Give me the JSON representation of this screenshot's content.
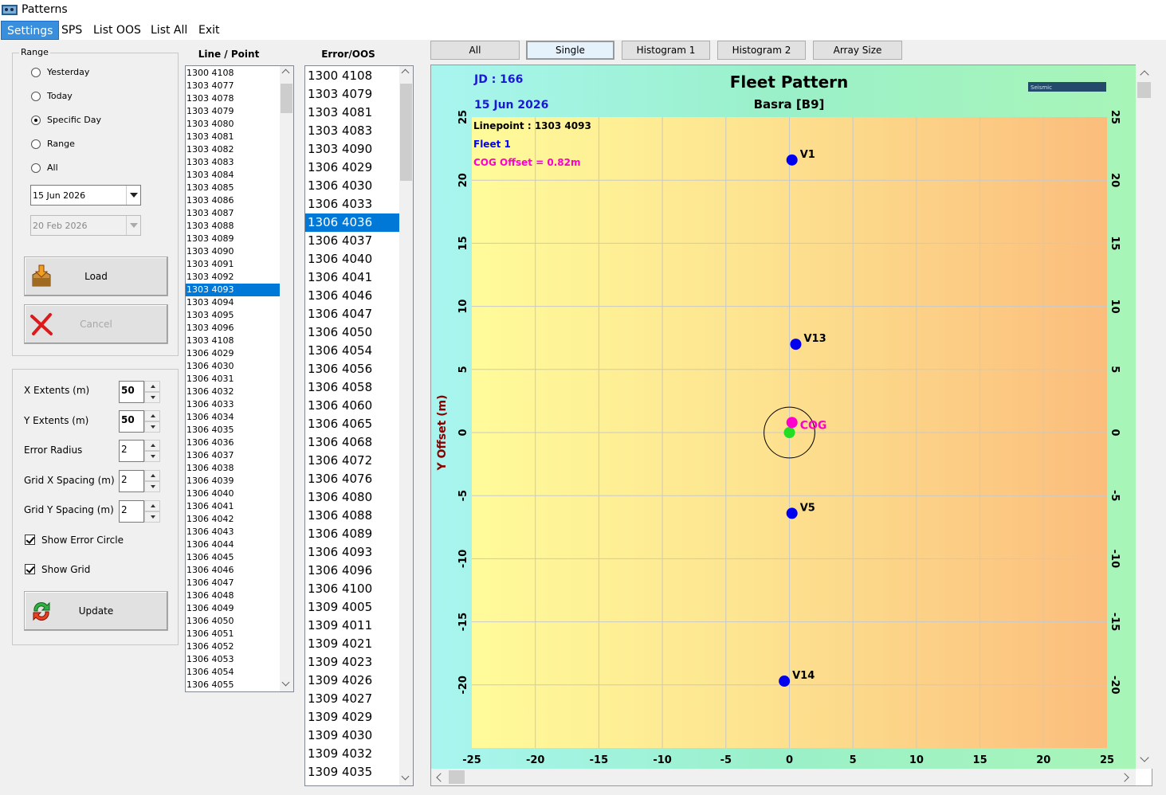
{
  "window": {
    "title": "Patterns"
  },
  "menu": [
    "Settings",
    "SPS",
    "List OOS",
    "List All",
    "Exit"
  ],
  "range": {
    "title": "Range",
    "options": [
      "Yesterday",
      "Today",
      "Specific Day",
      "Range",
      "All"
    ],
    "selected_index": 2,
    "date1": "15 Jun 2026",
    "date2": "20 Feb 2026",
    "load_label": "Load",
    "cancel_label": "Cancel"
  },
  "params": {
    "x_extents_label": "X Extents (m)",
    "x_extents": "50",
    "y_extents_label": "Y Extents (m)",
    "y_extents": "50",
    "error_radius_label": "Error Radius",
    "error_radius": "2",
    "grid_x_label": "Grid X Spacing (m)",
    "grid_x": "2",
    "grid_y_label": "Grid Y Spacing (m)",
    "grid_y": "2",
    "show_error_circle_label": "Show Error Circle",
    "show_error_circle": true,
    "show_grid_label": "Show Grid",
    "show_grid": true,
    "update_label": "Update"
  },
  "line_point": {
    "header": "Line / Point",
    "selected": "1303 4093",
    "items": [
      "1300 4108",
      "1303 4077",
      "1303 4078",
      "1303 4079",
      "1303 4080",
      "1303 4081",
      "1303 4082",
      "1303 4083",
      "1303 4084",
      "1303 4085",
      "1303 4086",
      "1303 4087",
      "1303 4088",
      "1303 4089",
      "1303 4090",
      "1303 4091",
      "1303 4092",
      "1303 4093",
      "1303 4094",
      "1303 4095",
      "1303 4096",
      "1303 4108",
      "1306 4029",
      "1306 4030",
      "1306 4031",
      "1306 4032",
      "1306 4033",
      "1306 4034",
      "1306 4035",
      "1306 4036",
      "1306 4037",
      "1306 4038",
      "1306 4039",
      "1306 4040",
      "1306 4041",
      "1306 4042",
      "1306 4043",
      "1306 4044",
      "1306 4045",
      "1306 4046",
      "1306 4047",
      "1306 4048",
      "1306 4049",
      "1306 4050",
      "1306 4051",
      "1306 4052",
      "1306 4053",
      "1306 4054",
      "1306 4055"
    ]
  },
  "error_oos": {
    "header": "Error/OOS",
    "selected": "1306 4036",
    "items": [
      "1300 4108",
      "1303 4079",
      "1303 4081",
      "1303 4083",
      "1303 4090",
      "1306 4029",
      "1306 4030",
      "1306 4033",
      "1306 4036",
      "1306 4037",
      "1306 4040",
      "1306 4041",
      "1306 4046",
      "1306 4047",
      "1306 4050",
      "1306 4054",
      "1306 4056",
      "1306 4058",
      "1306 4060",
      "1306 4065",
      "1306 4068",
      "1306 4072",
      "1306 4076",
      "1306 4080",
      "1306 4088",
      "1306 4089",
      "1306 4093",
      "1306 4096",
      "1306 4100",
      "1309 4005",
      "1309 4011",
      "1309 4021",
      "1309 4023",
      "1309 4026",
      "1309 4027",
      "1309 4029",
      "1309 4030",
      "1309 4032",
      "1309 4035"
    ]
  },
  "tabs": [
    "All",
    "Single",
    "Histogram 1",
    "Histogram 2",
    "Array Size"
  ],
  "selected_tab": "Single",
  "plot": {
    "jd": "JD : 166",
    "date": "15 Jun 2026",
    "title": "Fleet Pattern",
    "subtitle": "Basra  [B9]",
    "logo_text": "Seismic",
    "linepoint": "Linepoint : 1303 4093",
    "fleet": "Fleet 1",
    "cog_offset": "COG Offset = 0.82m",
    "ylabel": "Y Offset (m)",
    "colors": {
      "jd": "#1a1ad0",
      "fleet": "#0000ff",
      "cog": "#ff00cc",
      "vessel": "#0000ee",
      "origin": "#22dd22",
      "ylabel": "#880000"
    }
  },
  "chart_data": {
    "type": "scatter",
    "title": "Fleet Pattern",
    "subtitle": "Basra  [B9]",
    "xlabel": "",
    "ylabel": "Y Offset (m)",
    "xlim": [
      -25,
      25
    ],
    "ylim": [
      -25,
      25
    ],
    "x_ticks": [
      -25,
      -20,
      -15,
      -10,
      -5,
      0,
      5,
      10,
      15,
      20,
      25
    ],
    "y_ticks": [
      -20,
      -15,
      -10,
      -5,
      0,
      5,
      10,
      15,
      20,
      25
    ],
    "grid": true,
    "error_radius": 2,
    "vessels": [
      {
        "label": "V1",
        "x": 0.2,
        "y": 21.6
      },
      {
        "label": "V13",
        "x": 0.5,
        "y": 7.0
      },
      {
        "label": "V5",
        "x": 0.2,
        "y": -6.4
      },
      {
        "label": "V14",
        "x": -0.4,
        "y": -19.7
      }
    ],
    "cog": {
      "label": "COG",
      "x": 0.2,
      "y": 0.8
    },
    "origin": {
      "x": 0,
      "y": 0
    }
  }
}
